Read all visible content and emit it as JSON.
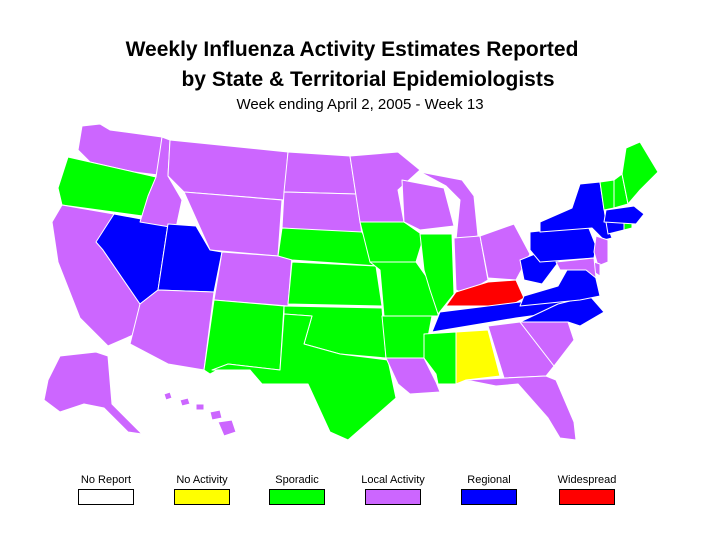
{
  "title_line1": "Weekly Influenza Activity Estimates Reported",
  "title_line2": "by State & Territorial Epidemiologists",
  "subtitle": "Week ending April 2, 2005 - Week 13",
  "colors": {
    "no_report": "#ffffff",
    "no_activity": "#ffff00",
    "sporadic": "#00ff00",
    "local": "#cc66ff",
    "regional": "#0000ff",
    "widespread": "#ff0000"
  },
  "legend": [
    {
      "label": "No Report",
      "level": "no_report"
    },
    {
      "label": "No Activity",
      "level": "no_activity"
    },
    {
      "label": "Sporadic",
      "level": "sporadic"
    },
    {
      "label": "Local Activity",
      "level": "local"
    },
    {
      "label": "Regional",
      "level": "regional"
    },
    {
      "label": "Widespread",
      "level": "widespread"
    }
  ],
  "states": {
    "WA": "local",
    "OR": "sporadic",
    "CA": "local",
    "NV": "regional",
    "ID": "local",
    "MT": "local",
    "WY": "local",
    "UT": "regional",
    "AZ": "local",
    "CO": "local",
    "NM": "sporadic",
    "ND": "local",
    "SD": "local",
    "NE": "sporadic",
    "KS": "sporadic",
    "OK": "sporadic",
    "TX": "sporadic",
    "MN": "local",
    "IA": "sporadic",
    "MO": "sporadic",
    "AR": "sporadic",
    "LA": "local",
    "WI": "local",
    "IL": "sporadic",
    "MI": "local",
    "IN": "local",
    "OH": "local",
    "KY": "widespread",
    "TN": "regional",
    "MS": "sporadic",
    "AL": "no_activity",
    "GA": "local",
    "FL": "local",
    "SC": "local",
    "NC": "regional",
    "VA": "regional",
    "WV": "regional",
    "PA": "regional",
    "NY": "regional",
    "VT": "sporadic",
    "NH": "sporadic",
    "ME": "sporadic",
    "MA": "regional",
    "RI": "sporadic",
    "CT": "regional",
    "NJ": "local",
    "DE": "local",
    "MD": "local",
    "AK": "local",
    "HI": "local"
  }
}
